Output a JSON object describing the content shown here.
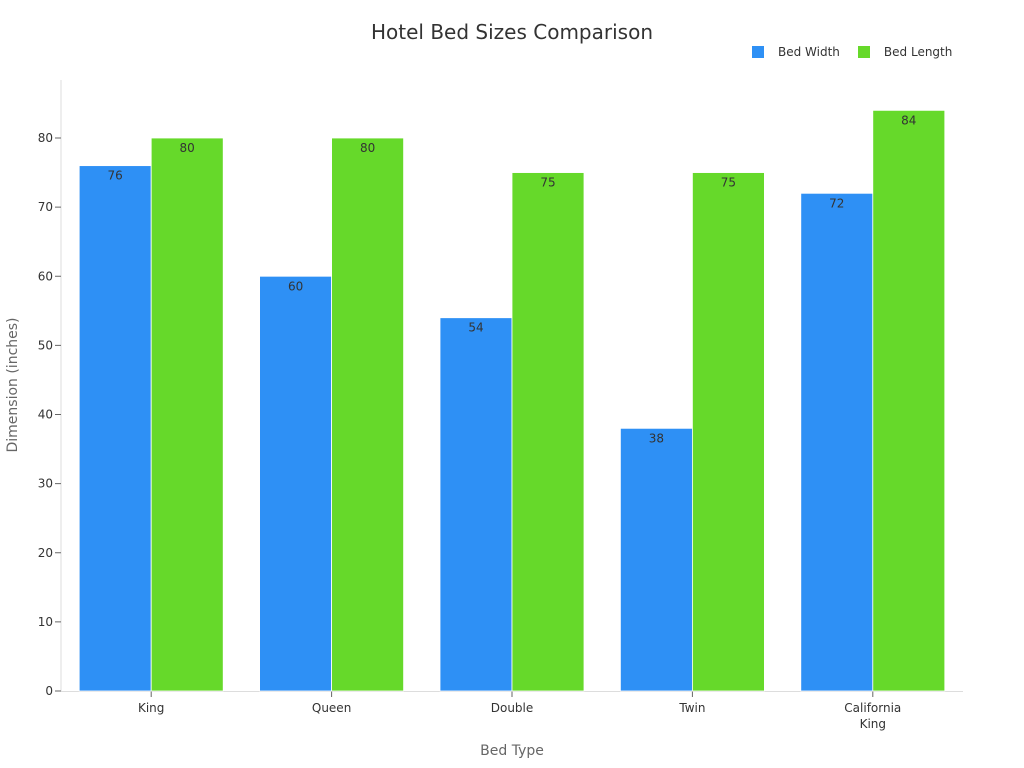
{
  "chart_data": {
    "type": "bar",
    "title": "Hotel Bed Sizes Comparison",
    "xlabel": "Bed Type",
    "ylabel": "Dimension (inches)",
    "categories": [
      "King",
      "Queen",
      "Double",
      "Twin",
      "California King"
    ],
    "series": [
      {
        "name": "Bed Width",
        "color": "#2e90f5",
        "values": [
          76,
          60,
          54,
          38,
          72
        ]
      },
      {
        "name": "Bed Length",
        "color": "#66d92a",
        "values": [
          80,
          80,
          75,
          75,
          84
        ]
      }
    ],
    "ylim": [
      0,
      84
    ],
    "yticks": [
      0,
      10,
      20,
      30,
      40,
      50,
      60,
      70,
      80
    ],
    "grid": false,
    "legend_position": "top-right",
    "data_labels": true
  }
}
